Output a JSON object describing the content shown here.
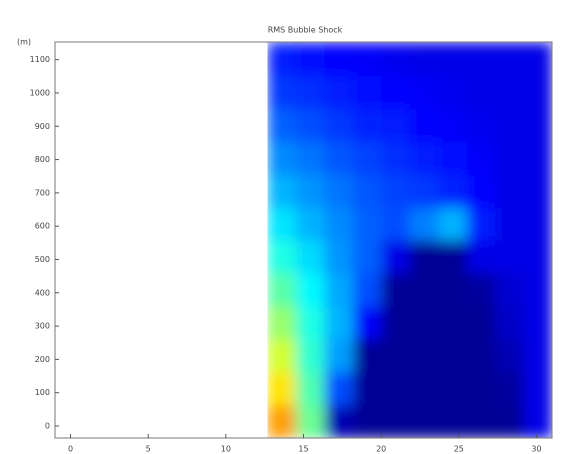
{
  "chart_data": {
    "type": "heatmap",
    "title": "RMS Bubble Shock",
    "ylabel": "(m)",
    "xlim": [
      -1,
      31
    ],
    "xticks": [
      0,
      5,
      10,
      15,
      20,
      25,
      30
    ],
    "ylim": [
      -36,
      1153
    ],
    "yticks": [
      0,
      100,
      200,
      300,
      400,
      500,
      600,
      700,
      800,
      900,
      1000,
      1100
    ],
    "colormap": "jet",
    "zlim": [
      0,
      1
    ],
    "xbins": [
      12.7,
      14.53,
      16.36,
      18.19,
      20.02,
      21.85,
      23.68,
      25.51,
      27.34,
      29.17,
      31
    ],
    "ybins": [
      -36,
      63,
      162,
      261,
      360,
      459,
      558,
      657,
      756,
      855,
      954,
      1053,
      1153
    ],
    "z": [
      [
        0.72,
        0.48,
        0.05,
        0.02,
        0.02,
        0.02,
        0.02,
        0.02,
        0.02,
        0.1
      ],
      [
        0.65,
        0.45,
        0.2,
        0.02,
        0.02,
        0.02,
        0.02,
        0.02,
        0.03,
        0.1
      ],
      [
        0.58,
        0.42,
        0.28,
        0.02,
        0.02,
        0.02,
        0.02,
        0.02,
        0.05,
        0.1
      ],
      [
        0.52,
        0.4,
        0.3,
        0.12,
        0.02,
        0.02,
        0.02,
        0.02,
        0.07,
        0.1
      ],
      [
        0.46,
        0.37,
        0.29,
        0.2,
        0.02,
        0.02,
        0.02,
        0.03,
        0.08,
        0.1
      ],
      [
        0.4,
        0.34,
        0.27,
        0.22,
        0.1,
        0.02,
        0.02,
        0.1,
        0.1,
        0.1
      ],
      [
        0.35,
        0.3,
        0.26,
        0.22,
        0.2,
        0.25,
        0.3,
        0.15,
        0.1,
        0.1
      ],
      [
        0.3,
        0.27,
        0.24,
        0.21,
        0.19,
        0.18,
        0.16,
        0.13,
        0.1,
        0.1
      ],
      [
        0.26,
        0.24,
        0.21,
        0.19,
        0.17,
        0.15,
        0.14,
        0.12,
        0.1,
        0.1
      ],
      [
        0.22,
        0.2,
        0.18,
        0.16,
        0.15,
        0.13,
        0.12,
        0.11,
        0.1,
        0.1
      ],
      [
        0.18,
        0.17,
        0.15,
        0.14,
        0.13,
        0.12,
        0.11,
        0.1,
        0.1,
        0.1
      ],
      [
        0.15,
        0.14,
        0.13,
        0.12,
        0.11,
        0.1,
        0.1,
        0.1,
        0.1,
        0.1
      ]
    ]
  }
}
